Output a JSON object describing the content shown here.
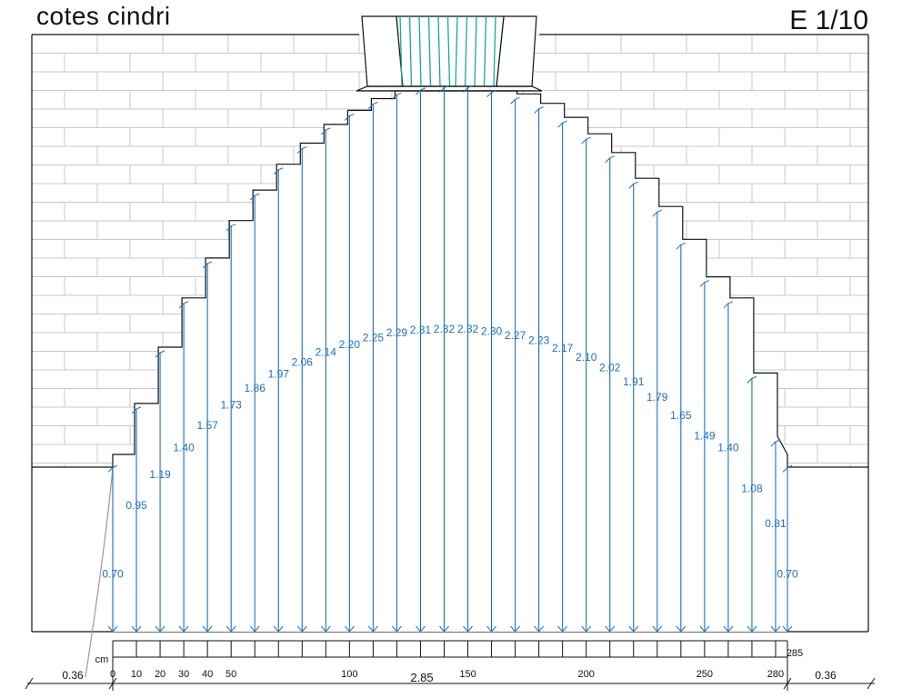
{
  "title": "cotes cindri",
  "scale": "E 1/10",
  "unit_label": "cm",
  "span_total": "2.85",
  "side_left": "0.36",
  "side_right": "0.36",
  "ruler": {
    "ticks_every": 10,
    "labels": [
      "0",
      "10",
      "20",
      "30",
      "40",
      "50",
      "100",
      "150",
      "200",
      "250",
      "280",
      "285"
    ],
    "label_positions_cm": [
      0,
      10,
      20,
      30,
      40,
      50,
      100,
      150,
      200,
      250,
      280,
      285
    ]
  },
  "ordinates": [
    {
      "cm": 0,
      "h": "0.70"
    },
    {
      "cm": 10,
      "h": "0.95"
    },
    {
      "cm": 20,
      "h": "1.19"
    },
    {
      "cm": 30,
      "h": "1.40"
    },
    {
      "cm": 40,
      "h": "1.57"
    },
    {
      "cm": 50,
      "h": "1.73"
    },
    {
      "cm": 60,
      "h": "1.86"
    },
    {
      "cm": 70,
      "h": "1.97"
    },
    {
      "cm": 80,
      "h": "2.06"
    },
    {
      "cm": 90,
      "h": "2.14"
    },
    {
      "cm": 100,
      "h": "2.20"
    },
    {
      "cm": 110,
      "h": "2.25"
    },
    {
      "cm": 120,
      "h": "2.29"
    },
    {
      "cm": 130,
      "h": "2.31"
    },
    {
      "cm": 140,
      "h": "2.32"
    },
    {
      "cm": 150,
      "h": "2.32"
    },
    {
      "cm": 160,
      "h": "2.30"
    },
    {
      "cm": 170,
      "h": "2.27"
    },
    {
      "cm": 180,
      "h": "2.23"
    },
    {
      "cm": 190,
      "h": "2.17"
    },
    {
      "cm": 200,
      "h": "2.10"
    },
    {
      "cm": 210,
      "h": "2.02"
    },
    {
      "cm": 220,
      "h": "1.91"
    },
    {
      "cm": 230,
      "h": "1.79"
    },
    {
      "cm": 240,
      "h": "1.65"
    },
    {
      "cm": 250,
      "h": "1.49"
    },
    {
      "cm": 260,
      "h": "1.40"
    },
    {
      "cm": 270,
      "h": "1.08"
    },
    {
      "cm": 280,
      "h": "0.81"
    },
    {
      "cm": 285,
      "h": "0.70"
    }
  ],
  "colors": {
    "dimension": "#1d6fc2",
    "keystone": "#19a89a",
    "wall": "#111111",
    "brick": "#c8c8c8",
    "curve": "#9a9a9a"
  }
}
